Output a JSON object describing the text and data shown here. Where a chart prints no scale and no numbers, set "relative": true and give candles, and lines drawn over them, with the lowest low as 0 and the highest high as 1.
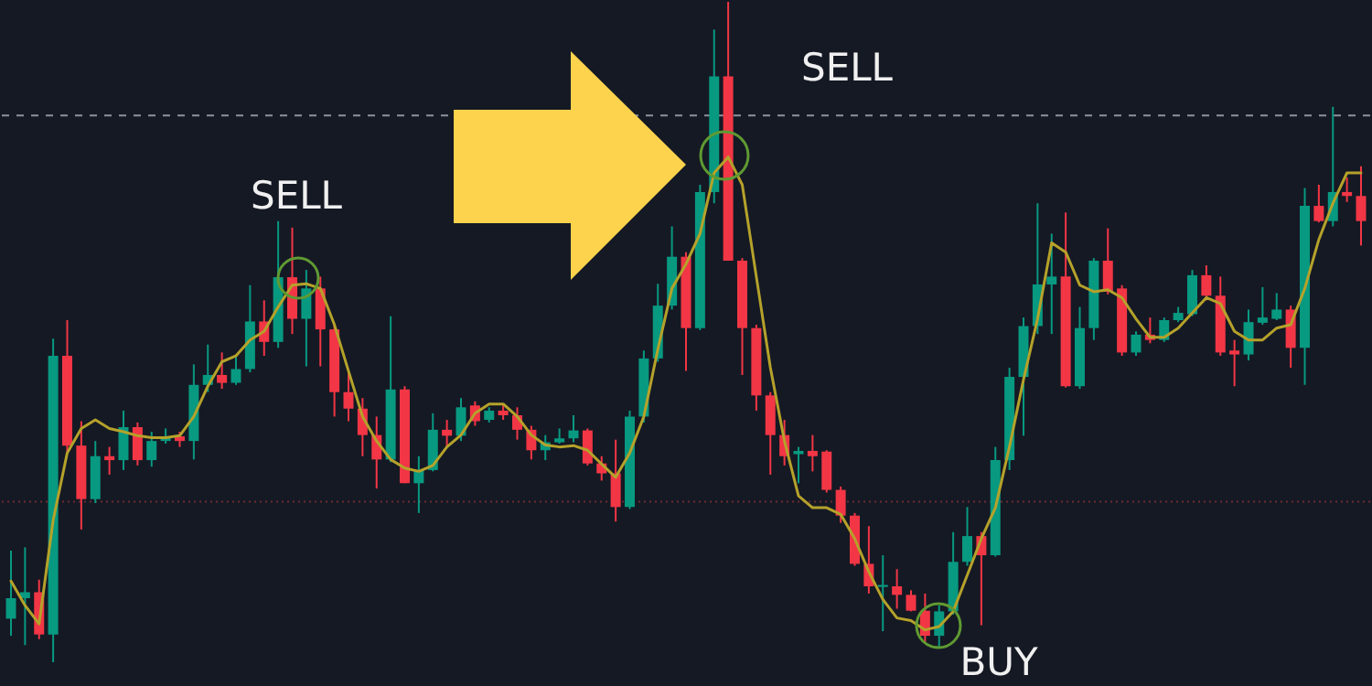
{
  "chart_data": {
    "type": "candlestick",
    "relative": true,
    "categories": [
      null,
      null,
      null,
      null,
      null,
      null,
      null,
      null,
      null,
      null,
      null,
      null,
      null,
      null,
      null,
      null,
      null,
      null,
      null,
      null,
      null,
      null,
      null,
      null,
      null,
      null,
      null,
      null,
      null,
      null,
      null,
      null,
      null,
      null,
      null,
      null,
      null,
      null,
      null,
      null,
      null,
      null,
      null,
      null,
      null,
      null,
      null,
      null,
      null,
      null,
      null,
      null,
      null,
      null,
      null,
      null,
      null,
      null,
      null,
      null,
      null,
      null,
      null,
      null,
      null,
      null,
      null,
      null,
      null,
      null,
      null,
      null,
      null,
      null,
      null,
      null,
      null,
      null,
      null,
      null,
      null,
      null,
      null,
      null,
      null,
      null,
      null,
      null,
      null,
      null,
      null,
      null,
      null,
      null,
      null,
      null,
      null
    ],
    "series": [
      {
        "type": "line",
        "color": "#b5a22a",
        "values": [
          0.123,
          0.086,
          0.058,
          0.215,
          0.317,
          0.354,
          0.367,
          0.354,
          0.349,
          0.343,
          0.34,
          0.34,
          0.343,
          0.372,
          0.418,
          0.455,
          0.464,
          0.488,
          0.501,
          0.538,
          0.571,
          0.573,
          0.566,
          0.511,
          0.441,
          0.372,
          0.335,
          0.307,
          0.294,
          0.289,
          0.298,
          0.326,
          0.344,
          0.377,
          0.391,
          0.391,
          0.372,
          0.344,
          0.329,
          0.326,
          0.328,
          0.321,
          0.3,
          0.28,
          0.317,
          0.372,
          0.474,
          0.566,
          0.603,
          0.649,
          0.741,
          0.765,
          0.723,
          0.584,
          0.446,
          0.335,
          0.252,
          0.234,
          0.234,
          0.224,
          0.187,
          0.137,
          0.095,
          0.067,
          0.063,
          0.049,
          0.054,
          0.077,
          0.132,
          0.187,
          0.234,
          0.326,
          0.428,
          0.52,
          0.635,
          0.621,
          0.571,
          0.561,
          0.564,
          0.552,
          0.52,
          0.492,
          0.492,
          0.506,
          0.529,
          0.552,
          0.543,
          0.501,
          0.488,
          0.488,
          0.506,
          0.511,
          0.566,
          0.64,
          0.695,
          0.741,
          0.741
        ]
      },
      {
        "type": "candlestick",
        "ohlc": [
          [
            0.066,
            0.169,
            0.04,
            0.097
          ],
          [
            0.097,
            0.174,
            0.026,
            0.106
          ],
          [
            0.106,
            0.125,
            0.035,
            0.042
          ],
          [
            0.042,
            0.49,
            0,
            0.464
          ],
          [
            0.464,
            0.518,
            0.317,
            0.328
          ],
          [
            0.328,
            0.365,
            0.201,
            0.247
          ],
          [
            0.247,
            0.335,
            0.241,
            0.312
          ],
          [
            0.312,
            0.326,
            0.284,
            0.306
          ],
          [
            0.306,
            0.381,
            0.291,
            0.356
          ],
          [
            0.356,
            0.363,
            0.298,
            0.306
          ],
          [
            0.306,
            0.349,
            0.296,
            0.335
          ],
          [
            0.335,
            0.354,
            0.331,
            0.342
          ],
          [
            0.342,
            0.349,
            0.326,
            0.335
          ],
          [
            0.335,
            0.451,
            0.307,
            0.42
          ],
          [
            0.42,
            0.481,
            0.409,
            0.435
          ],
          [
            0.435,
            0.469,
            0.414,
            0.423
          ],
          [
            0.423,
            0.464,
            0.42,
            0.444
          ],
          [
            0.444,
            0.571,
            0.439,
            0.516
          ],
          [
            0.516,
            0.548,
            0.464,
            0.485
          ],
          [
            0.485,
            0.668,
            0.476,
            0.583
          ],
          [
            0.583,
            0.658,
            0.497,
            0.52
          ],
          [
            0.52,
            0.594,
            0.448,
            0.566
          ],
          [
            0.566,
            0.584,
            0.448,
            0.504
          ],
          [
            0.504,
            0.511,
            0.372,
            0.409
          ],
          [
            0.409,
            0.441,
            0.365,
            0.384
          ],
          [
            0.384,
            0.4,
            0.312,
            0.344
          ],
          [
            0.344,
            0.372,
            0.263,
            0.307
          ],
          [
            0.307,
            0.524,
            0.303,
            0.413
          ],
          [
            0.413,
            0.418,
            0.271,
            0.271
          ],
          [
            0.271,
            0.312,
            0.226,
            0.291
          ],
          [
            0.291,
            0.377,
            0.289,
            0.352
          ],
          [
            0.352,
            0.367,
            0.326,
            0.343
          ],
          [
            0.343,
            0.4,
            0.335,
            0.386
          ],
          [
            0.389,
            0.395,
            0.358,
            0.365
          ],
          [
            0.367,
            0.386,
            0.363,
            0.381
          ],
          [
            0.381,
            0.391,
            0.367,
            0.374
          ],
          [
            0.374,
            0.386,
            0.337,
            0.352
          ],
          [
            0.352,
            0.358,
            0.307,
            0.321
          ],
          [
            0.321,
            0.344,
            0.306,
            0.333
          ],
          [
            0.333,
            0.354,
            0.331,
            0.339
          ],
          [
            0.339,
            0.374,
            0.333,
            0.351
          ],
          [
            0.351,
            0.354,
            0.298,
            0.301
          ],
          [
            0.301,
            0.312,
            0.275,
            0.286
          ],
          [
            0.286,
            0.337,
            0.213,
            0.235
          ],
          [
            0.235,
            0.381,
            0.232,
            0.372
          ],
          [
            0.372,
            0.472,
            0.363,
            0.46
          ],
          [
            0.46,
            0.573,
            0.455,
            0.54
          ],
          [
            0.54,
            0.66,
            0.534,
            0.614
          ],
          [
            0.614,
            0.621,
            0.441,
            0.506
          ],
          [
            0.506,
            0.723,
            0.503,
            0.712
          ],
          [
            0.712,
            0.958,
            0.695,
            0.887
          ],
          [
            0.887,
            1,
            0.608,
            0.608
          ],
          [
            0.608,
            0.612,
            0.435,
            0.506
          ],
          [
            0.506,
            0.511,
            0.381,
            0.404
          ],
          [
            0.404,
            0.409,
            0.284,
            0.344
          ],
          [
            0.344,
            0.367,
            0.298,
            0.312
          ],
          [
            0.315,
            0.326,
            0.271,
            0.32
          ],
          [
            0.32,
            0.344,
            0.289,
            0.312
          ],
          [
            0.319,
            0.321,
            0.257,
            0.261
          ],
          [
            0.261,
            0.266,
            0.211,
            0.222
          ],
          [
            0.222,
            0.226,
            0.146,
            0.149
          ],
          [
            0.149,
            0.206,
            0.104,
            0.115
          ],
          [
            0.114,
            0.162,
            0.047,
            0.117
          ],
          [
            0.115,
            0.141,
            0.081,
            0.102
          ],
          [
            0.102,
            0.109,
            0.077,
            0.078
          ],
          [
            0.078,
            0.104,
            0.03,
            0.04
          ],
          [
            0.04,
            0.086,
            0.023,
            0.077
          ],
          [
            0.077,
            0.197,
            0.072,
            0.152
          ],
          [
            0.152,
            0.235,
            0.146,
            0.191
          ],
          [
            0.191,
            0.197,
            0.056,
            0.162
          ],
          [
            0.162,
            0.326,
            0.16,
            0.306
          ],
          [
            0.306,
            0.446,
            0.291,
            0.432
          ],
          [
            0.432,
            0.522,
            0.343,
            0.509
          ],
          [
            0.509,
            0.695,
            0.497,
            0.572
          ],
          [
            0.572,
            0.649,
            0.497,
            0.584
          ],
          [
            0.584,
            0.681,
            0.416,
            0.418
          ],
          [
            0.418,
            0.538,
            0.414,
            0.506
          ],
          [
            0.506,
            0.612,
            0.488,
            0.608
          ],
          [
            0.608,
            0.657,
            0.557,
            0.561
          ],
          [
            0.566,
            0.571,
            0.464,
            0.469
          ],
          [
            0.469,
            0.501,
            0.464,
            0.496
          ],
          [
            0.496,
            0.522,
            0.483,
            0.488
          ],
          [
            0.488,
            0.522,
            0.485,
            0.518
          ],
          [
            0.518,
            0.538,
            0.515,
            0.529
          ],
          [
            0.527,
            0.594,
            0.524,
            0.586
          ],
          [
            0.586,
            0.601,
            0.548,
            0.555
          ],
          [
            0.555,
            0.584,
            0.464,
            0.469
          ],
          [
            0.472,
            0.488,
            0.418,
            0.466
          ],
          [
            0.466,
            0.534,
            0.457,
            0.515
          ],
          [
            0.514,
            0.568,
            0.511,
            0.522
          ],
          [
            0.52,
            0.559,
            0.518,
            0.534
          ],
          [
            0.534,
            0.54,
            0.446,
            0.476
          ],
          [
            0.476,
            0.718,
            0.42,
            0.691
          ],
          [
            0.691,
            0.723,
            0.666,
            0.668
          ],
          [
            0.668,
            0.841,
            0.66,
            0.712
          ],
          [
            0.712,
            0.734,
            0.697,
            0.706
          ],
          [
            0.706,
            0.751,
            0.631,
            0.668
          ]
        ],
        "colors": [
          "#089981",
          "#089981",
          "#f23645",
          "#089981",
          "#f23645",
          "#f23645",
          "#089981",
          "#f23645",
          "#089981",
          "#f23645",
          "#089981",
          "#089981",
          "#f23645",
          "#089981",
          "#089981",
          "#f23645",
          "#089981",
          "#089981",
          "#f23645",
          "#089981",
          "#f23645",
          "#089981",
          "#f23645",
          "#f23645",
          "#f23645",
          "#f23645",
          "#f23645",
          "#089981",
          "#f23645",
          "#089981",
          "#089981",
          "#f23645",
          "#089981",
          "#f23645",
          "#089981",
          "#f23645",
          "#f23645",
          "#f23645",
          "#089981",
          "#089981",
          "#089981",
          "#f23645",
          "#f23645",
          "#f23645",
          "#089981",
          "#089981",
          "#089981",
          "#089981",
          "#f23645",
          "#089981",
          "#089981",
          "#f23645",
          "#f23645",
          "#f23645",
          "#f23645",
          "#f23645",
          "#089981",
          "#f23645",
          "#f23645",
          "#f23645",
          "#f23645",
          "#f23645",
          "#089981",
          "#f23645",
          "#f23645",
          "#f23645",
          "#089981",
          "#089981",
          "#089981",
          "#f23645",
          "#089981",
          "#089981",
          "#089981",
          "#089981",
          "#089981",
          "#f23645",
          "#089981",
          "#089981",
          "#f23645",
          "#f23645",
          "#089981",
          "#f23645",
          "#089981",
          "#089981",
          "#089981",
          "#f23645",
          "#f23645",
          "#f23645",
          "#089981",
          "#089981",
          "#089981",
          "#f23645",
          "#089981",
          "#f23645",
          "#089981",
          "#f23645",
          "#f23645"
        ]
      }
    ],
    "ref_lines": [
      {
        "axis": "y",
        "value": 0.828,
        "color": "#8e929b",
        "line_style": "dashed"
      },
      {
        "axis": "y",
        "value": 0.243,
        "color": "#6e2b33",
        "line_style": "dotted"
      }
    ],
    "annotations": [
      "SELL",
      "SELL",
      "BUY"
    ]
  }
}
